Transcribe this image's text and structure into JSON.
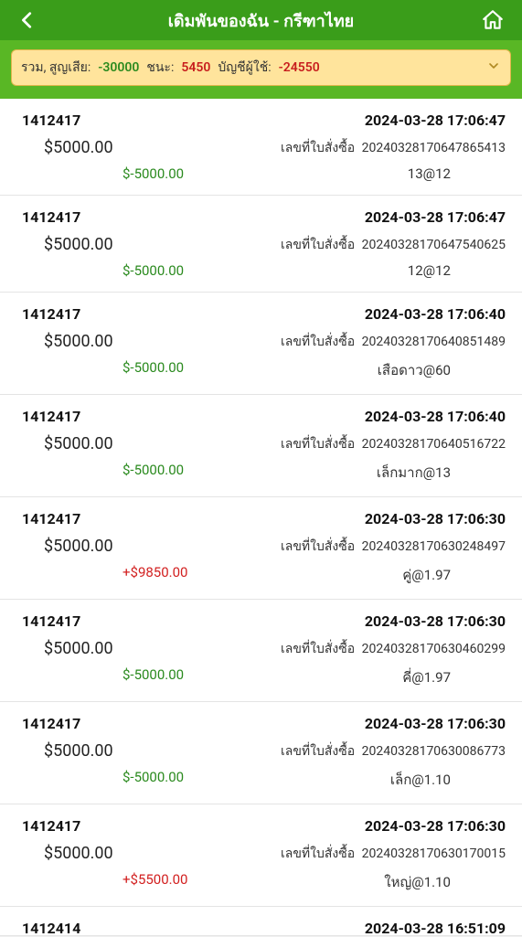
{
  "header": {
    "title": "เดิมพันของฉัน - กรีฑาไทย"
  },
  "summary": {
    "total_label": "รวม, สูญเสีย:",
    "total_value": "-30000",
    "win_label": "ชนะ:",
    "win_value": "5450",
    "balance_label": "บัญชีผู้ใช้:",
    "balance_value": "-24550"
  },
  "order_label": "เลขที่ใบสั่งซื้อ",
  "bets": [
    {
      "id": "1412417",
      "time": "2024-03-28 17:06:47",
      "amount": "$5000.00",
      "order_no": "20240328170647865413",
      "result": "$-5000.00",
      "result_class": "green",
      "bet": "13@12"
    },
    {
      "id": "1412417",
      "time": "2024-03-28 17:06:47",
      "amount": "$5000.00",
      "order_no": "20240328170647540625",
      "result": "$-5000.00",
      "result_class": "green",
      "bet": "12@12"
    },
    {
      "id": "1412417",
      "time": "2024-03-28 17:06:40",
      "amount": "$5000.00",
      "order_no": "20240328170640851489",
      "result": "$-5000.00",
      "result_class": "green",
      "bet": "เสือดาว@60"
    },
    {
      "id": "1412417",
      "time": "2024-03-28 17:06:40",
      "amount": "$5000.00",
      "order_no": "20240328170640516722",
      "result": "$-5000.00",
      "result_class": "green",
      "bet": "เล็กมาก@13"
    },
    {
      "id": "1412417",
      "time": "2024-03-28 17:06:30",
      "amount": "$5000.00",
      "order_no": "20240328170630248497",
      "result": "+$9850.00",
      "result_class": "red",
      "bet": "คู่@1.97"
    },
    {
      "id": "1412417",
      "time": "2024-03-28 17:06:30",
      "amount": "$5000.00",
      "order_no": "20240328170630460299",
      "result": "$-5000.00",
      "result_class": "green",
      "bet": "คี่@1.97"
    },
    {
      "id": "1412417",
      "time": "2024-03-28 17:06:30",
      "amount": "$5000.00",
      "order_no": "20240328170630086773",
      "result": "$-5000.00",
      "result_class": "green",
      "bet": "เล็ก@1.10"
    },
    {
      "id": "1412417",
      "time": "2024-03-28 17:06:30",
      "amount": "$5000.00",
      "order_no": "20240328170630170015",
      "result": "+$5500.00",
      "result_class": "red",
      "bet": "ใหญ่@1.10"
    }
  ],
  "partial": {
    "id": "1412414",
    "time": "2024-03-28 16:51:09"
  },
  "colors": {
    "header_bg": "#3a9d1a",
    "subheader_bg": "#59b725",
    "summary_bg": "#ffe49c",
    "green": "#2a8a1e",
    "red": "#d22020"
  }
}
